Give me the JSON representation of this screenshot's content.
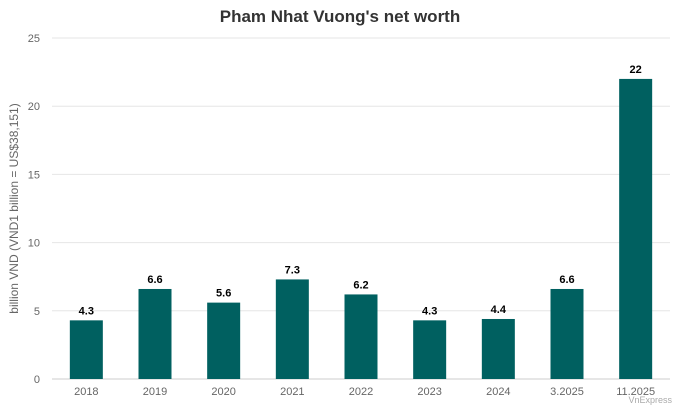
{
  "chart_data": {
    "type": "bar",
    "title": "Pham Nhat Vuong's net worth",
    "ylabel": "billion VND (VND1 billion = US$38,151)",
    "xlabel": "",
    "categories": [
      "2018",
      "2019",
      "2020",
      "2021",
      "2022",
      "2023",
      "2024",
      "3.2025",
      "11.2025"
    ],
    "values": [
      4.3,
      6.6,
      5.6,
      7.3,
      6.2,
      4.3,
      4.4,
      6.6,
      22
    ],
    "data_labels": [
      "4.3",
      "6.6",
      "5.6",
      "7.3",
      "6.2",
      "4.3",
      "4.4",
      "6.6",
      "22"
    ],
    "ylim": [
      0,
      25
    ],
    "yticks": [
      0,
      5,
      10,
      15,
      20,
      25
    ],
    "ytick_labels": [
      "0",
      "5",
      "10",
      "15",
      "20",
      "25"
    ],
    "grid": true,
    "bar_color": "#006060",
    "legend": "none"
  },
  "source": "VnExpress"
}
